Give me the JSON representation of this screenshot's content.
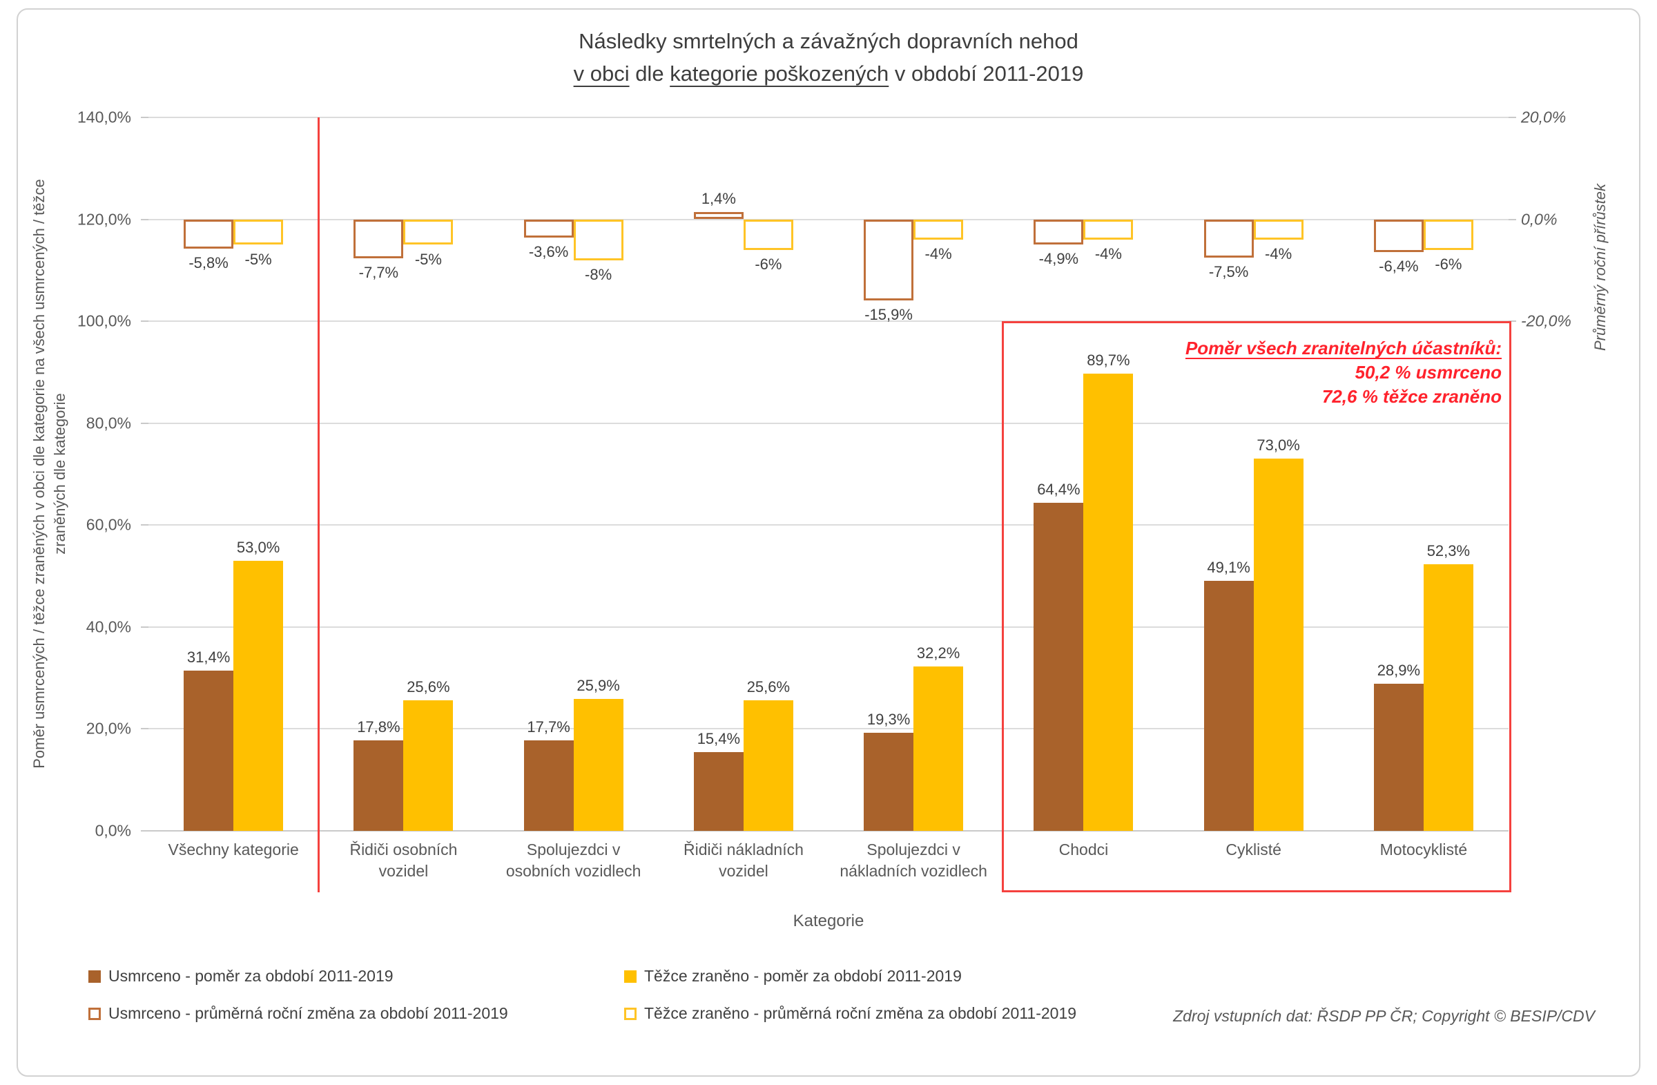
{
  "title": {
    "line1": "Následky smrtelných a závažných dopravních nehod",
    "line2_segments": [
      {
        "text": "v obci",
        "underline": true
      },
      {
        "text": " dle ",
        "underline": false
      },
      {
        "text": "kategorie poškozených",
        "underline": true
      },
      {
        "text": " v období 2011-2019",
        "underline": false
      }
    ]
  },
  "chart_data": {
    "type": "bar",
    "title": "Následky smrtelných a závažných dopravních nehod v obci dle kategorie poškozených v období 2011-2019",
    "categories": [
      "Všechny kategorie",
      "Řidiči osobních vozidel",
      "Spolujezdci v osobních vozidlech",
      "Řidiči nákladních vozidel",
      "Spolujezdci v nákladních vozidlech",
      "Chodci",
      "Cyklisté",
      "Motocyklisté"
    ],
    "category_label_lines": [
      [
        "Všechny kategorie"
      ],
      [
        "Řidiči osobních",
        "vozidel"
      ],
      [
        "Spolujezdci v",
        "osobních vozidlech"
      ],
      [
        "Řidiči nákladních",
        "vozidel"
      ],
      [
        "Spolujezdci v",
        "nákladních vozidlech"
      ],
      [
        "Chodci"
      ],
      [
        "Cyklisté"
      ],
      [
        "Motocyklisté"
      ]
    ],
    "series": [
      {
        "key": "usmrceno-pomer",
        "name": "Usmrceno - poměr za období 2011-2019",
        "axis": "primary",
        "style": "solid-brown",
        "values": [
          31.4,
          17.8,
          17.7,
          15.4,
          19.3,
          64.4,
          49.1,
          28.9
        ],
        "labels": [
          "31,4%",
          "17,8%",
          "17,7%",
          "15,4%",
          "19,3%",
          "64,4%",
          "49,1%",
          "28,9%"
        ]
      },
      {
        "key": "tezce-zraneno-pomer",
        "name": "Těžce zraněno - poměr za období 2011-2019",
        "axis": "primary",
        "style": "solid-yellow",
        "values": [
          53.0,
          25.6,
          25.9,
          25.6,
          32.2,
          89.7,
          73.0,
          52.3
        ],
        "labels": [
          "53,0%",
          "25,6%",
          "25,9%",
          "25,6%",
          "32,2%",
          "89,7%",
          "73,0%",
          "52,3%"
        ]
      },
      {
        "key": "usmrceno-zmena",
        "name": "Usmrceno - průměrná roční změna za období 2011-2019",
        "axis": "secondary",
        "style": "outline-brown",
        "values": [
          -5.8,
          -7.7,
          -3.6,
          1.4,
          -15.9,
          -4.9,
          -7.5,
          -6.4
        ],
        "labels": [
          "-5,8%",
          "-7,7%",
          "-3,6%",
          "1,4%",
          "-15,9%",
          "-4,9%",
          "-7,5%",
          "-6,4%"
        ]
      },
      {
        "key": "tezce-zraneno-zmena",
        "name": "Těžce zraněno - průměrná roční změna za období 2011-2019",
        "axis": "secondary",
        "style": "outline-yellow",
        "values": [
          -5,
          -5,
          -8,
          -6,
          -4,
          -4,
          -4,
          -6
        ],
        "labels": [
          "-5%",
          "-5%",
          "-8%",
          "-6%",
          "-4%",
          "-4%",
          "-4%",
          "-6%"
        ]
      }
    ],
    "primary_axis": {
      "title": "Poměr usmrcených / těžce zraněných v obci dle kategorie na všech usmrcených / těžce zraněných dle kategorie",
      "title_lines": [
        "Poměr usmrcených / těžce zraněných v obci dle kategorie na všech usmrcených / těžce",
        "zraněných dle kategorie"
      ],
      "min": 0,
      "max": 140,
      "ticks": [
        {
          "v": 140,
          "label": "140,0%"
        },
        {
          "v": 120,
          "label": "120,0%"
        },
        {
          "v": 100,
          "label": "100,0%"
        },
        {
          "v": 80,
          "label": "80,0%"
        },
        {
          "v": 60,
          "label": "60,0%"
        },
        {
          "v": 40,
          "label": "40,0%"
        },
        {
          "v": 20,
          "label": "20,0%"
        },
        {
          "v": 0,
          "label": "0,0%"
        }
      ]
    },
    "secondary_axis": {
      "title": "Průměrný roční přírůstek",
      "min": -20,
      "max": 20,
      "zero_at_primary": 120,
      "ticks": [
        {
          "v": 20,
          "label": "20,0%"
        },
        {
          "v": 0,
          "label": "0,0%"
        },
        {
          "v": -20,
          "label": "-20,0%"
        }
      ]
    },
    "x_axis_title": "Kategorie",
    "grid": true,
    "separator_after_category": 0,
    "highlight_box": {
      "from_category": 5,
      "to_category": 7
    },
    "annotation": {
      "lines": [
        "Poměr všech zranitelných účastníků:",
        "50,2 % usmrceno",
        "72,6 % těžce zraněno"
      ],
      "underline_first": true
    },
    "legend": [
      {
        "style": "solid-brown",
        "label": "Usmrceno - poměr za období 2011-2019"
      },
      {
        "style": "solid-yellow",
        "label": "Těžce zraněno - poměr za období 2011-2019"
      },
      {
        "style": "outline-brown",
        "label": "Usmrceno - průměrná roční změna za období 2011-2019"
      },
      {
        "style": "outline-yellow",
        "label": "Těžce zraněno - průměrná roční změna za období 2011-2019"
      }
    ]
  },
  "footer": {
    "source": "Zdroj vstupních dat: ŘSDP PP ČR; Copyright © BESIP/CDV"
  },
  "colors": {
    "killed_fill": "#a9622b",
    "injured_fill": "#ffc000",
    "killed_outline": "#c0703a",
    "injured_outline": "#ffc426",
    "highlight_red": "#f5413e",
    "annotation_red": "#ff222c",
    "grid": "#dcdcdc",
    "text_dark": "#404040",
    "text_medium": "#595959"
  }
}
